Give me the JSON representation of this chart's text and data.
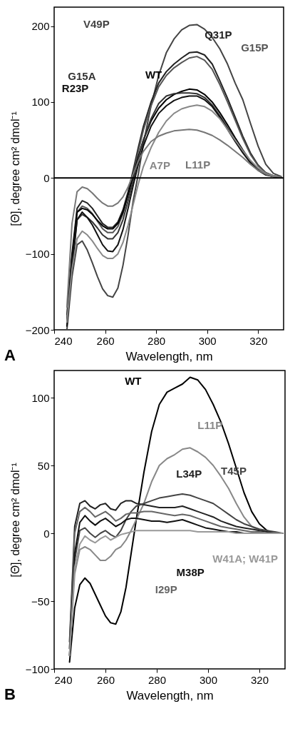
{
  "chart_data": [
    {
      "type": "line",
      "xlabel": "Wavelength, nm",
      "ylabel": "[Θ], degree cm² dmol⁻¹",
      "xlim": [
        240,
        330
      ],
      "xticks": [
        240,
        260,
        280,
        300,
        320
      ],
      "ylim": [
        -200,
        225
      ],
      "yticks": [
        -200,
        -100,
        0,
        100,
        200
      ],
      "grid": false,
      "legend": false,
      "line_style": "solid",
      "annotations": [
        "A"
      ],
      "ref_lines": [
        {
          "axis": "y",
          "value": 0,
          "color": "#000000"
        }
      ],
      "x": [
        245,
        247,
        249,
        251,
        253,
        255,
        257,
        259,
        261,
        263,
        265,
        267,
        269,
        271,
        273,
        275,
        278,
        281,
        284,
        287,
        290,
        293,
        296,
        299,
        302,
        305,
        308,
        311,
        314,
        317,
        320,
        323,
        326,
        329
      ],
      "series": [
        {
          "name": "V49P",
          "color": "#444444",
          "values": [
            -200,
            -130,
            -88,
            -83,
            -95,
            -112,
            -130,
            -146,
            -155,
            -157,
            -145,
            -115,
            -75,
            -30,
            5,
            45,
            95,
            135,
            165,
            183,
            195,
            201,
            202,
            196,
            185,
            170,
            150,
            125,
            103,
            72,
            42,
            18,
            6,
            2
          ]
        },
        {
          "name": "Q31P",
          "color": "#222222",
          "values": [
            -180,
            -100,
            -40,
            -30,
            -33,
            -40,
            -50,
            -60,
            -65,
            -65,
            -58,
            -42,
            -18,
            10,
            40,
            68,
            100,
            125,
            140,
            150,
            158,
            165,
            166,
            162,
            150,
            128,
            105,
            80,
            55,
            33,
            17,
            7,
            3,
            1
          ]
        },
        {
          "name": "G15P",
          "color": "#555555",
          "values": [
            -185,
            -110,
            -45,
            -37,
            -40,
            -47,
            -57,
            -67,
            -72,
            -72,
            -64,
            -47,
            -22,
            5,
            35,
            63,
            95,
            120,
            135,
            145,
            152,
            158,
            160,
            155,
            143,
            123,
            100,
            76,
            52,
            31,
            16,
            7,
            3,
            1
          ]
        },
        {
          "name": "WT",
          "color": "#000000",
          "values": [
            -190,
            -105,
            -45,
            -40,
            -42,
            -48,
            -56,
            -63,
            -67,
            -67,
            -60,
            -45,
            -22,
            3,
            28,
            50,
            75,
            92,
            103,
            110,
            114,
            117,
            116,
            110,
            100,
            86,
            70,
            53,
            37,
            22,
            12,
            5,
            2,
            1
          ]
        },
        {
          "name": "G15A",
          "color": "#333333",
          "values": [
            -195,
            -115,
            -55,
            -48,
            -52,
            -58,
            -66,
            -75,
            -80,
            -80,
            -72,
            -55,
            -30,
            -3,
            25,
            50,
            78,
            98,
            108,
            111,
            112,
            112,
            111,
            106,
            96,
            82,
            66,
            50,
            35,
            21,
            11,
            5,
            2,
            1
          ]
        },
        {
          "name": "R23P",
          "color": "#111111",
          "values": [
            -195,
            -120,
            -55,
            -45,
            -52,
            -62,
            -75,
            -88,
            -96,
            -97,
            -88,
            -68,
            -40,
            -10,
            18,
            42,
            68,
            85,
            95,
            102,
            106,
            108,
            108,
            103,
            94,
            80,
            64,
            48,
            33,
            20,
            10,
            4,
            2,
            1
          ]
        },
        {
          "name": "A7P",
          "color": "#888888",
          "values": [
            -190,
            -120,
            -80,
            -70,
            -75,
            -83,
            -93,
            -102,
            -106,
            -106,
            -100,
            -85,
            -62,
            -35,
            -8,
            15,
            40,
            60,
            75,
            85,
            91,
            94,
            96,
            94,
            88,
            78,
            64,
            50,
            36,
            23,
            13,
            6,
            3,
            1
          ]
        },
        {
          "name": "L11P",
          "color": "#777777",
          "values": [
            -170,
            -60,
            -18,
            -12,
            -14,
            -20,
            -27,
            -33,
            -37,
            -37,
            -33,
            -25,
            -12,
            5,
            22,
            35,
            48,
            55,
            59,
            62,
            63,
            64,
            63,
            60,
            56,
            50,
            43,
            35,
            27,
            18,
            10,
            5,
            2,
            1
          ]
        }
      ]
    },
    {
      "type": "line",
      "xlabel": "Wavelength, nm",
      "ylabel": "[Θ], degree cm² dmol⁻¹",
      "xlim": [
        240,
        330
      ],
      "xticks": [
        240,
        260,
        280,
        300,
        320
      ],
      "ylim": [
        -100,
        120
      ],
      "yticks": [
        -100,
        -50,
        0,
        50,
        100
      ],
      "grid": false,
      "legend": false,
      "line_style": "solid",
      "annotations": [
        "B"
      ],
      "x": [
        246,
        248,
        250,
        252,
        254,
        256,
        258,
        260,
        262,
        264,
        266,
        268,
        270,
        272,
        275,
        278,
        281,
        284,
        287,
        290,
        293,
        296,
        299,
        302,
        305,
        308,
        311,
        314,
        317,
        320,
        323,
        326,
        329
      ],
      "series": [
        {
          "name": "WT",
          "color": "#000000",
          "values": [
            -95,
            -55,
            -38,
            -33,
            -37,
            -45,
            -53,
            -61,
            -66,
            -67,
            -58,
            -40,
            -15,
            10,
            45,
            75,
            95,
            104,
            107,
            110,
            115,
            113,
            106,
            95,
            82,
            66,
            48,
            30,
            16,
            7,
            2,
            0,
            0
          ]
        },
        {
          "name": "L11P",
          "color": "#888888",
          "values": [
            -90,
            -30,
            -12,
            -10,
            -12,
            -16,
            -20,
            -20,
            -17,
            -12,
            -10,
            -5,
            2,
            10,
            22,
            38,
            50,
            55,
            58,
            62,
            63,
            60,
            56,
            50,
            42,
            33,
            22,
            12,
            5,
            2,
            1,
            0,
            0
          ]
        },
        {
          "name": "L34P",
          "color": "#222222",
          "values": [
            -80,
            5,
            22,
            24,
            20,
            18,
            21,
            22,
            18,
            17,
            22,
            24,
            24,
            22,
            21,
            20,
            19,
            19,
            19,
            20,
            18,
            16,
            14,
            12,
            9,
            7,
            5,
            4,
            3,
            2,
            1,
            0,
            0
          ]
        },
        {
          "name": "T45P",
          "color": "#444444",
          "values": [
            -85,
            -20,
            2,
            4,
            0,
            -3,
            0,
            2,
            -1,
            -3,
            2,
            10,
            16,
            20,
            22,
            24,
            26,
            27,
            28,
            29,
            28,
            26,
            24,
            22,
            18,
            14,
            10,
            7,
            5,
            3,
            2,
            1,
            0
          ]
        },
        {
          "name": "I29P",
          "color": "#666666",
          "values": [
            -85,
            0,
            16,
            19,
            16,
            12,
            14,
            16,
            13,
            9,
            11,
            14,
            15,
            15,
            16,
            16,
            15,
            14,
            13,
            14,
            13,
            11,
            9,
            7,
            5,
            4,
            3,
            2,
            1,
            1,
            0,
            0,
            0
          ]
        },
        {
          "name": "M38P",
          "color": "#111111",
          "values": [
            -90,
            -15,
            8,
            13,
            9,
            6,
            9,
            11,
            8,
            5,
            7,
            10,
            11,
            11,
            10,
            9,
            9,
            8,
            9,
            10,
            8,
            6,
            4,
            3,
            2,
            1,
            1,
            0,
            0,
            0,
            0,
            0,
            0
          ]
        },
        {
          "name": "W41A; W41P",
          "color": "#999999",
          "values": [
            -90,
            -25,
            -8,
            -2,
            -5,
            -7,
            -4,
            -2,
            -5,
            -3,
            -1,
            0,
            1,
            2,
            2,
            2,
            2,
            2,
            2,
            2,
            2,
            1,
            1,
            1,
            1,
            1,
            0,
            0,
            0,
            0,
            0,
            0,
            0
          ]
        }
      ]
    }
  ]
}
